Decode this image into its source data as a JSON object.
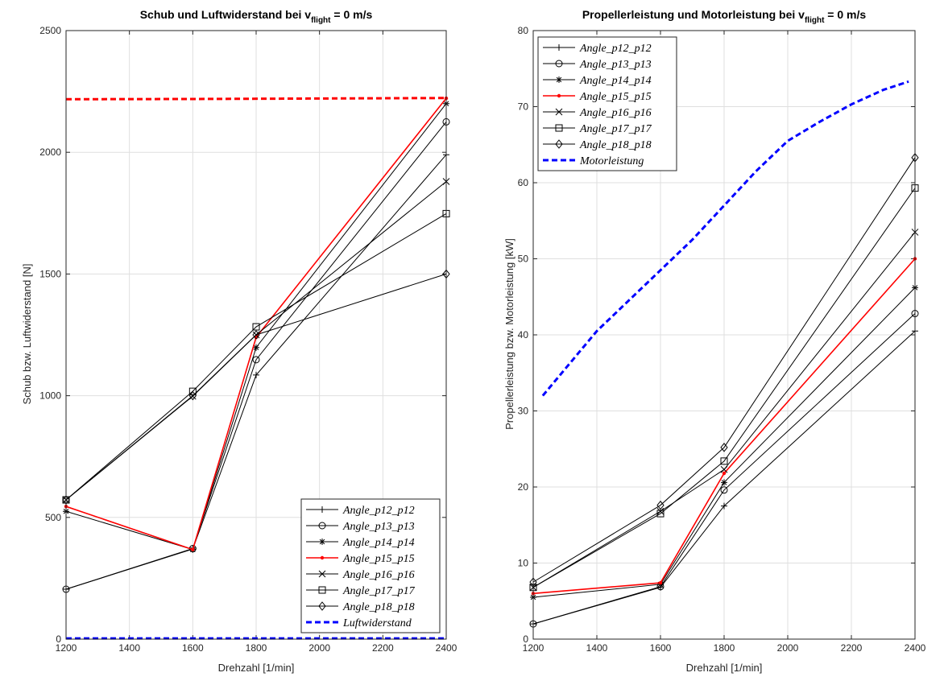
{
  "chart_data": [
    {
      "type": "line",
      "title_main": "Schub und Luftwiderstand bei v",
      "title_sub": "flight",
      "title_tail": " = 0 m/s",
      "xlabel": "Drehzahl [1/min]",
      "ylabel": "Schub bzw. Luftwiderstand [N]",
      "xlim": [
        1200,
        2400
      ],
      "ylim": [
        0,
        2500
      ],
      "xticks": [
        1200,
        1400,
        1600,
        1800,
        2000,
        2200,
        2400
      ],
      "yticks": [
        0,
        500,
        1000,
        1500,
        2000,
        2500
      ],
      "grid": true,
      "legend_position": "bottom-right",
      "x": [
        1200,
        1600,
        1800,
        2400
      ],
      "series": [
        {
          "name": "Angle_p12_p12",
          "marker": "plus",
          "color": "#000000",
          "values": [
            205,
            370,
            1085,
            1990
          ]
        },
        {
          "name": "Angle_p13_p13",
          "marker": "circle",
          "color": "#000000",
          "values": [
            205,
            372,
            1148,
            2125
          ]
        },
        {
          "name": "Angle_p14_p14",
          "marker": "star",
          "color": "#000000",
          "values": [
            525,
            368,
            1198,
            2200
          ]
        },
        {
          "name": "Angle_p15_p15",
          "marker": "dot",
          "color": "#ff0000",
          "values": [
            545,
            368,
            1240,
            2222
          ]
        },
        {
          "name": "Angle_p16_p16",
          "marker": "x",
          "color": "#000000",
          "values": [
            572,
            998,
            1250,
            1880
          ]
        },
        {
          "name": "Angle_p17_p17",
          "marker": "square",
          "color": "#000000",
          "values": [
            572,
            1018,
            1283,
            1748
          ]
        },
        {
          "name": "Angle_p18_p18",
          "marker": "diamond",
          "color": "#000000",
          "values": [
            572,
            1000,
            1250,
            1500
          ]
        }
      ],
      "dashed_series": [
        {
          "name": "Luftwiderstand",
          "color": "#0000ff",
          "x": [
            1200,
            2400
          ],
          "values": [
            3,
            3
          ],
          "show_in_legend": true
        },
        {
          "name": "",
          "color": "#ff0000",
          "x": [
            1200,
            1600,
            2000,
            2400
          ],
          "values": [
            2218,
            2219,
            2221,
            2223
          ],
          "show_in_legend": false
        }
      ]
    },
    {
      "type": "line",
      "title_main": "Propellerleistung und Motorleistung bei v",
      "title_sub": "flight",
      "title_tail": " = 0 m/s",
      "xlabel": "Drehzahl [1/min]",
      "ylabel": "Propellerleistung bzw. Motorleistung [kW]",
      "xlim": [
        1200,
        2400
      ],
      "ylim": [
        0,
        80
      ],
      "xticks": [
        1200,
        1400,
        1600,
        1800,
        2000,
        2200,
        2400
      ],
      "yticks": [
        0,
        10,
        20,
        30,
        40,
        50,
        60,
        70,
        80
      ],
      "grid": true,
      "legend_position": "top-left",
      "x": [
        1200,
        1600,
        1800,
        2400
      ],
      "series": [
        {
          "name": "Angle_p12_p12",
          "marker": "plus",
          "color": "#000000",
          "values": [
            2.0,
            6.8,
            17.5,
            40.5
          ]
        },
        {
          "name": "Angle_p13_p13",
          "marker": "circle",
          "color": "#000000",
          "values": [
            2.0,
            6.9,
            19.6,
            42.8
          ]
        },
        {
          "name": "Angle_p14_p14",
          "marker": "star",
          "color": "#000000",
          "values": [
            5.5,
            7.2,
            20.6,
            46.2
          ]
        },
        {
          "name": "Angle_p15_p15",
          "marker": "dot",
          "color": "#ff0000",
          "values": [
            6.0,
            7.4,
            21.8,
            50.0
          ]
        },
        {
          "name": "Angle_p16_p16",
          "marker": "x",
          "color": "#000000",
          "values": [
            6.8,
            16.8,
            22.3,
            53.5
          ]
        },
        {
          "name": "Angle_p17_p17",
          "marker": "square",
          "color": "#000000",
          "values": [
            6.8,
            16.5,
            23.4,
            59.3
          ]
        },
        {
          "name": "Angle_p18_p18",
          "marker": "diamond",
          "color": "#000000",
          "values": [
            7.5,
            17.6,
            25.2,
            63.3
          ]
        }
      ],
      "dashed_series": [
        {
          "name": "Motorleistung",
          "color": "#0000ff",
          "x": [
            1230,
            1300,
            1400,
            1500,
            1600,
            1700,
            1800,
            1900,
            2000,
            2100,
            2200,
            2300,
            2380
          ],
          "values": [
            32.0,
            35.5,
            40.5,
            44.5,
            48.5,
            52.5,
            57.0,
            61.5,
            65.5,
            68.0,
            70.3,
            72.2,
            73.3
          ],
          "show_in_legend": true
        }
      ]
    }
  ]
}
